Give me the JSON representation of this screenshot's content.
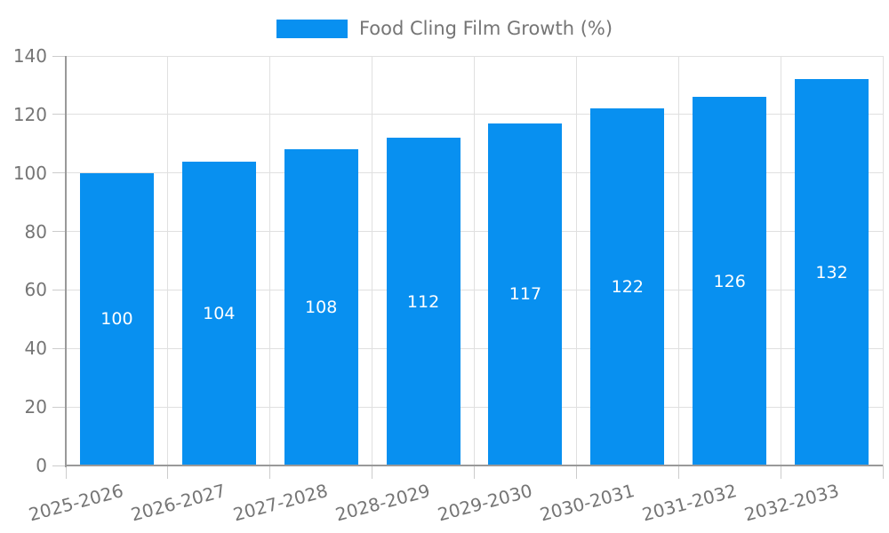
{
  "legend": {
    "items": [
      {
        "label": "Food Cling Film Growth (%)",
        "color": "#0890f0"
      }
    ]
  },
  "chart_data": {
    "type": "bar",
    "title": "",
    "legend": [
      "Food Cling Film Growth (%)"
    ],
    "series_name": "Food Cling Film Growth (%)",
    "categories": [
      "2025-2026",
      "2026-2027",
      "2027-2028",
      "2028-2029",
      "2029-2030",
      "2030-2031",
      "2031-2032",
      "2032-2033"
    ],
    "values": [
      100,
      104,
      108,
      112,
      117,
      122,
      126,
      132
    ],
    "xlabel": "",
    "ylabel": "",
    "ylim": [
      0,
      140
    ],
    "yticks": [
      0,
      20,
      40,
      60,
      80,
      100,
      120,
      140
    ],
    "grid": true,
    "legend_position": "top-center",
    "x_label_rotation_deg": -15,
    "bar_color": "#0890f0",
    "bar_label_color": "#ffffff",
    "colors": {
      "axis": "#999999",
      "tick": "#cccccc",
      "grid": "#e0e0e0",
      "text": "#757575",
      "background": "#ffffff"
    }
  }
}
